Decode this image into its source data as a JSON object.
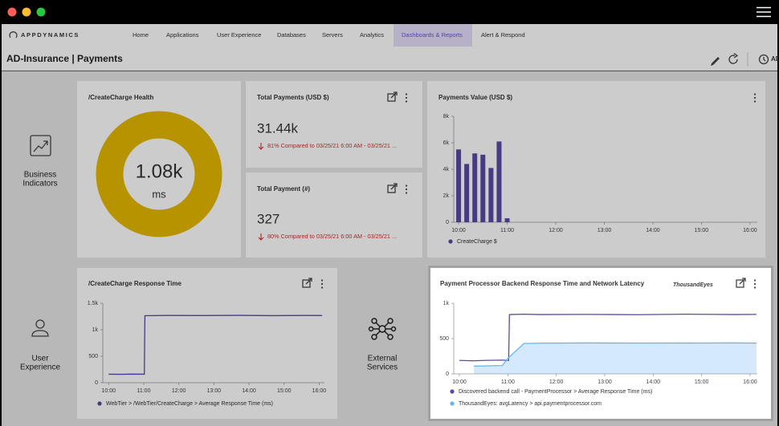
{
  "nav": {
    "brand": "APPDYNAMICS",
    "items": [
      "Home",
      "Applications",
      "User Experience",
      "Databases",
      "Servers",
      "Analytics",
      "Dashboards & Reports",
      "Alert & Respond"
    ],
    "active": 6
  },
  "header": {
    "title": "AD-Insurance | Payments",
    "time_label": "AD"
  },
  "sections": [
    [
      "Business",
      "Indicators"
    ],
    [
      "User",
      "Experience"
    ],
    [
      "External",
      "Services"
    ]
  ],
  "widgets": {
    "health": {
      "title": "/CreateCharge Health",
      "value": "1.08k",
      "unit": "ms"
    },
    "total_payments": {
      "title": "Total Payments (USD $)",
      "value": "31.44k",
      "comparison": "81% Compared to 03/25/21 6:00 AM - 03/25/21 ..."
    },
    "total_count": {
      "title": "Total Payment (#)",
      "value": "327",
      "comparison": "80% Compared to 03/25/21 6:00 AM - 03/25/21 ..."
    }
  },
  "chart_data": [
    {
      "type": "bar",
      "title": "Payments Value (USD $)",
      "x": [
        600,
        610,
        620,
        630,
        640,
        650,
        660
      ],
      "series": [
        {
          "name": "CreateCharge $",
          "color": "#5a4aa8",
          "values": [
            5500,
            4400,
            5200,
            5100,
            4100,
            6100,
            300
          ]
        }
      ],
      "xlim": [
        594,
        969
      ],
      "xticks": [
        {
          "value": 600,
          "label": "10:00"
        },
        {
          "value": 660,
          "label": "11:00"
        },
        {
          "value": 720,
          "label": "12:00"
        },
        {
          "value": 780,
          "label": "13:00"
        },
        {
          "value": 840,
          "label": "14:00"
        },
        {
          "value": 900,
          "label": "15:00"
        },
        {
          "value": 960,
          "label": "16:00"
        }
      ],
      "ylim": [
        0,
        8000
      ],
      "yticks": [
        0,
        {
          "value": 2000,
          "label": "2k"
        },
        {
          "value": 4000,
          "label": "4k"
        },
        {
          "value": 6000,
          "label": "6k"
        },
        {
          "value": 8000,
          "label": "8k"
        }
      ]
    },
    {
      "type": "line",
      "title": "/CreateCharge Response Time",
      "x": [
        600,
        620,
        640,
        661,
        662,
        700,
        760,
        820,
        880,
        940,
        965
      ],
      "series": [
        {
          "name": "WebTier > /WebTier/CreateCharge > Average Response Time (ms)",
          "color": "#5a4aa8",
          "values": [
            160,
            158,
            162,
            160,
            1265,
            1270,
            1268,
            1272,
            1266,
            1270,
            1268
          ]
        }
      ],
      "xlim": [
        590,
        969
      ],
      "xticks": [
        {
          "value": 600,
          "label": "10:00"
        },
        {
          "value": 660,
          "label": "11:00"
        },
        {
          "value": 720,
          "label": "12:00"
        },
        {
          "value": 780,
          "label": "13:00"
        },
        {
          "value": 840,
          "label": "14:00"
        },
        {
          "value": 900,
          "label": "15:00"
        },
        {
          "value": 960,
          "label": "16:00"
        }
      ],
      "ylim": [
        0,
        1500
      ],
      "yticks": [
        0,
        500,
        {
          "value": 1000,
          "label": "1k"
        },
        {
          "value": 1500,
          "label": "1.5k"
        }
      ]
    },
    {
      "type": "line",
      "title": "Payment Processor Backend Response Time and Network Latency",
      "logo": "ThousandEyes",
      "x": [
        600,
        618,
        630,
        653,
        661,
        662,
        680,
        700,
        760,
        820,
        880,
        940,
        968
      ],
      "series": [
        {
          "name": "Discovered backend call - PaymentProcessor > Average Response Time (ms)",
          "color": "#5a4aa8",
          "values": [
            190,
            185,
            190,
            195,
            190,
            840,
            845,
            840,
            842,
            838,
            845,
            840,
            842
          ]
        },
        {
          "name": "ThousandEyes: avgLatency > api.paymentprocessor.com",
          "color": "#64b5f6",
          "area": true,
          "values": [
            null,
            110,
            112,
            118,
            230,
            240,
            430,
            435,
            438,
            436,
            437,
            438,
            436
          ]
        }
      ],
      "xlim": [
        593,
        969
      ],
      "xticks": [
        {
          "value": 600,
          "label": "10:00"
        },
        {
          "value": 660,
          "label": "11:00"
        },
        {
          "value": 720,
          "label": "12:00"
        },
        {
          "value": 780,
          "label": "13:00"
        },
        {
          "value": 840,
          "label": "14:00"
        },
        {
          "value": 900,
          "label": "15:00"
        },
        {
          "value": 960,
          "label": "16:00"
        }
      ],
      "ylim": [
        0,
        1000
      ],
      "yticks": [
        0,
        500,
        {
          "value": 1000,
          "label": "1k"
        }
      ]
    }
  ]
}
